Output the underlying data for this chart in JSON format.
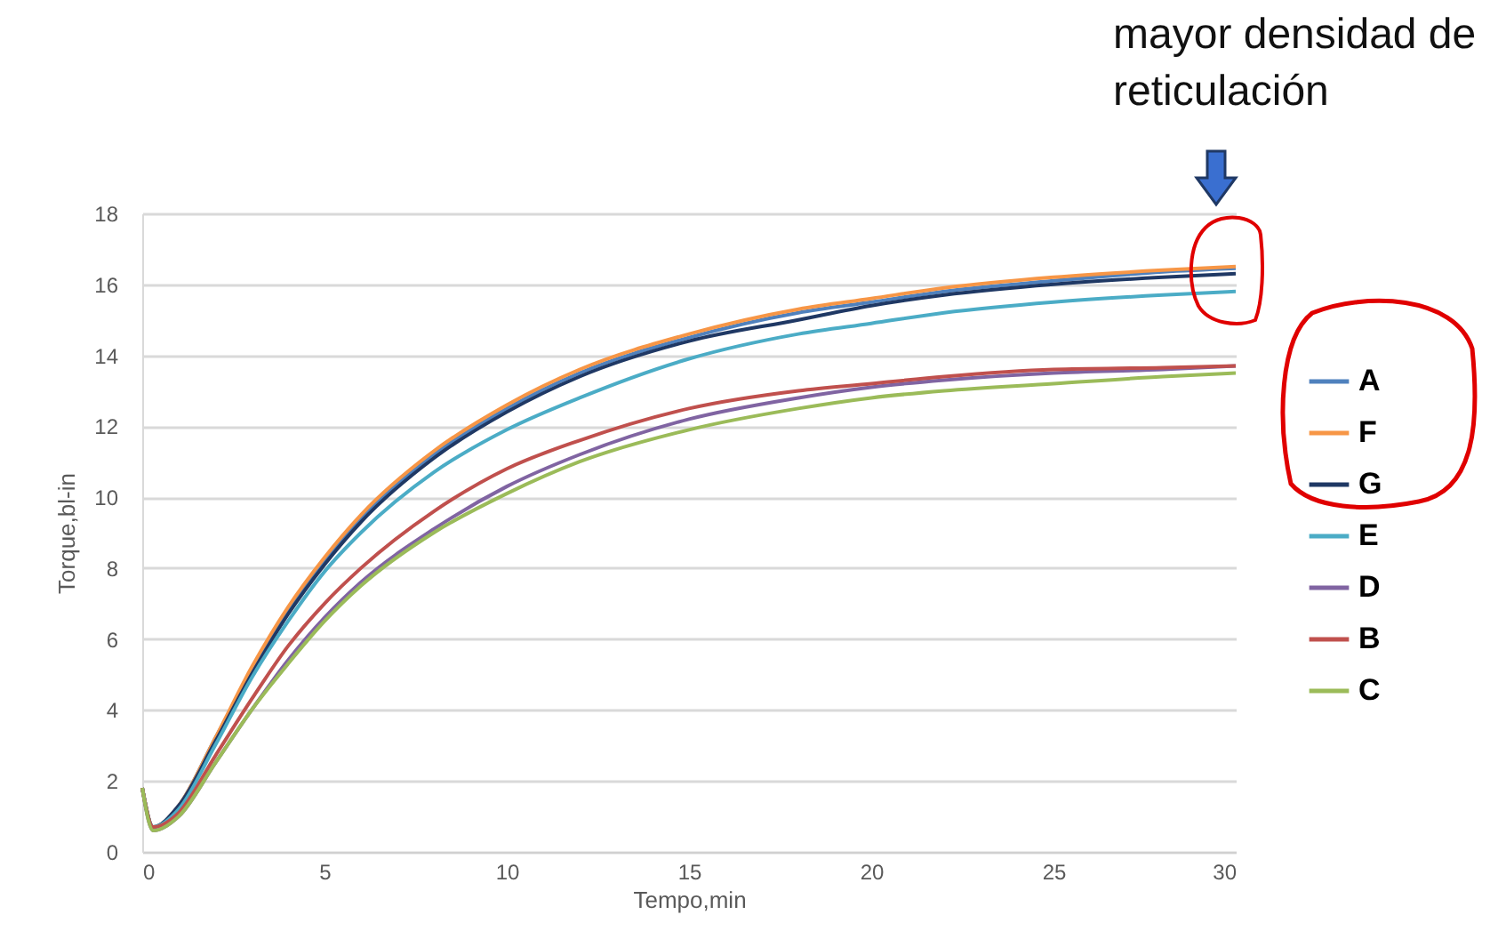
{
  "chart_data": {
    "type": "line",
    "xlabel": "Tempo,min",
    "ylabel": "Torque,bl-in",
    "annotations": [
      "mayor densidad de reticulación"
    ],
    "x": [
      0,
      0.3,
      1,
      2,
      3,
      4,
      5,
      6,
      8,
      10,
      12,
      15,
      18,
      20,
      22,
      25,
      28,
      30
    ],
    "xlim": [
      0,
      30
    ],
    "xticks": [
      0,
      5,
      10,
      15,
      20,
      25,
      30
    ],
    "ylim": [
      0,
      18
    ],
    "yticks": [
      0,
      2,
      4,
      6,
      8,
      10,
      12,
      14,
      16,
      18
    ],
    "grid": "y",
    "legend": "right",
    "marker": "none",
    "line_style": "solid",
    "series": [
      {
        "name": "A",
        "color": "#4f81bd",
        "values": [
          1.8,
          0.7,
          1.3,
          3.2,
          5.1,
          6.8,
          8.2,
          9.4,
          11.2,
          12.5,
          13.5,
          14.5,
          15.2,
          15.5,
          15.8,
          16.1,
          16.35,
          16.45
        ]
      },
      {
        "name": "F",
        "color": "#f79646",
        "values": [
          1.8,
          0.7,
          1.3,
          3.2,
          5.2,
          6.9,
          8.3,
          9.5,
          11.3,
          12.6,
          13.6,
          14.6,
          15.3,
          15.6,
          15.9,
          16.2,
          16.4,
          16.5
        ]
      },
      {
        "name": "G",
        "color": "#1f3864",
        "values": [
          1.8,
          0.7,
          1.3,
          3.1,
          5.0,
          6.7,
          8.1,
          9.3,
          11.1,
          12.4,
          13.4,
          14.4,
          15.0,
          15.4,
          15.7,
          16.0,
          16.2,
          16.3
        ]
      },
      {
        "name": "E",
        "color": "#4bacc6",
        "values": [
          1.8,
          0.7,
          1.2,
          3.0,
          4.9,
          6.5,
          7.9,
          9.0,
          10.7,
          11.9,
          12.8,
          13.9,
          14.6,
          14.9,
          15.2,
          15.5,
          15.7,
          15.8
        ]
      },
      {
        "name": "D",
        "color": "#8064a2",
        "values": [
          1.8,
          0.6,
          1.0,
          2.5,
          4.0,
          5.4,
          6.6,
          7.6,
          9.1,
          10.3,
          11.2,
          12.2,
          12.8,
          13.1,
          13.3,
          13.5,
          13.6,
          13.7
        ]
      },
      {
        "name": "B",
        "color": "#c0504d",
        "values": [
          1.8,
          0.7,
          1.1,
          2.7,
          4.3,
          5.8,
          7.0,
          8.0,
          9.6,
          10.8,
          11.6,
          12.5,
          13.0,
          13.2,
          13.4,
          13.6,
          13.65,
          13.7
        ]
      },
      {
        "name": "C",
        "color": "#9bbb59",
        "values": [
          1.8,
          0.6,
          1.0,
          2.5,
          4.0,
          5.3,
          6.5,
          7.5,
          9.0,
          10.1,
          11.0,
          11.9,
          12.5,
          12.8,
          13.0,
          13.2,
          13.4,
          13.5
        ]
      }
    ]
  }
}
